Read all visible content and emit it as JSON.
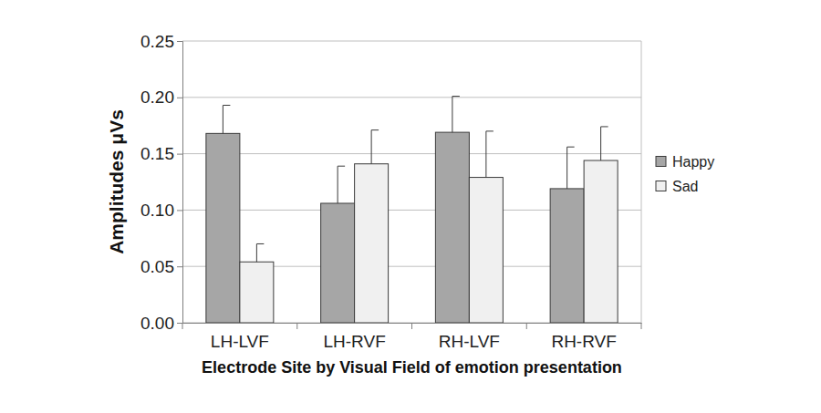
{
  "chart_data": {
    "type": "bar",
    "x_label": "Electrode Site by Visual Field of emotion presentation",
    "y_label": "Amplitudes μVs",
    "categories": [
      "LH-LVF",
      "LH-RVF",
      "RH-LVF",
      "RH-RVF"
    ],
    "series": [
      {
        "name": "Happy",
        "color": "#a6a6a6",
        "values": [
          0.168,
          0.106,
          0.169,
          0.119
        ],
        "errors": [
          0.025,
          0.033,
          0.032,
          0.037
        ]
      },
      {
        "name": "Sad",
        "color": "#f0f0f0",
        "values": [
          0.054,
          0.141,
          0.129,
          0.144
        ],
        "errors": [
          0.016,
          0.03,
          0.041,
          0.03
        ]
      }
    ],
    "ylim": [
      0,
      0.25
    ],
    "yticks": [
      {
        "value": 0,
        "label": "0.00"
      },
      0.05,
      {
        "value": 0.1,
        "label": "0.10"
      },
      0.15,
      {
        "value": 0.2,
        "label": "0.20"
      },
      0.25
    ],
    "grid": true,
    "legend": "right"
  }
}
